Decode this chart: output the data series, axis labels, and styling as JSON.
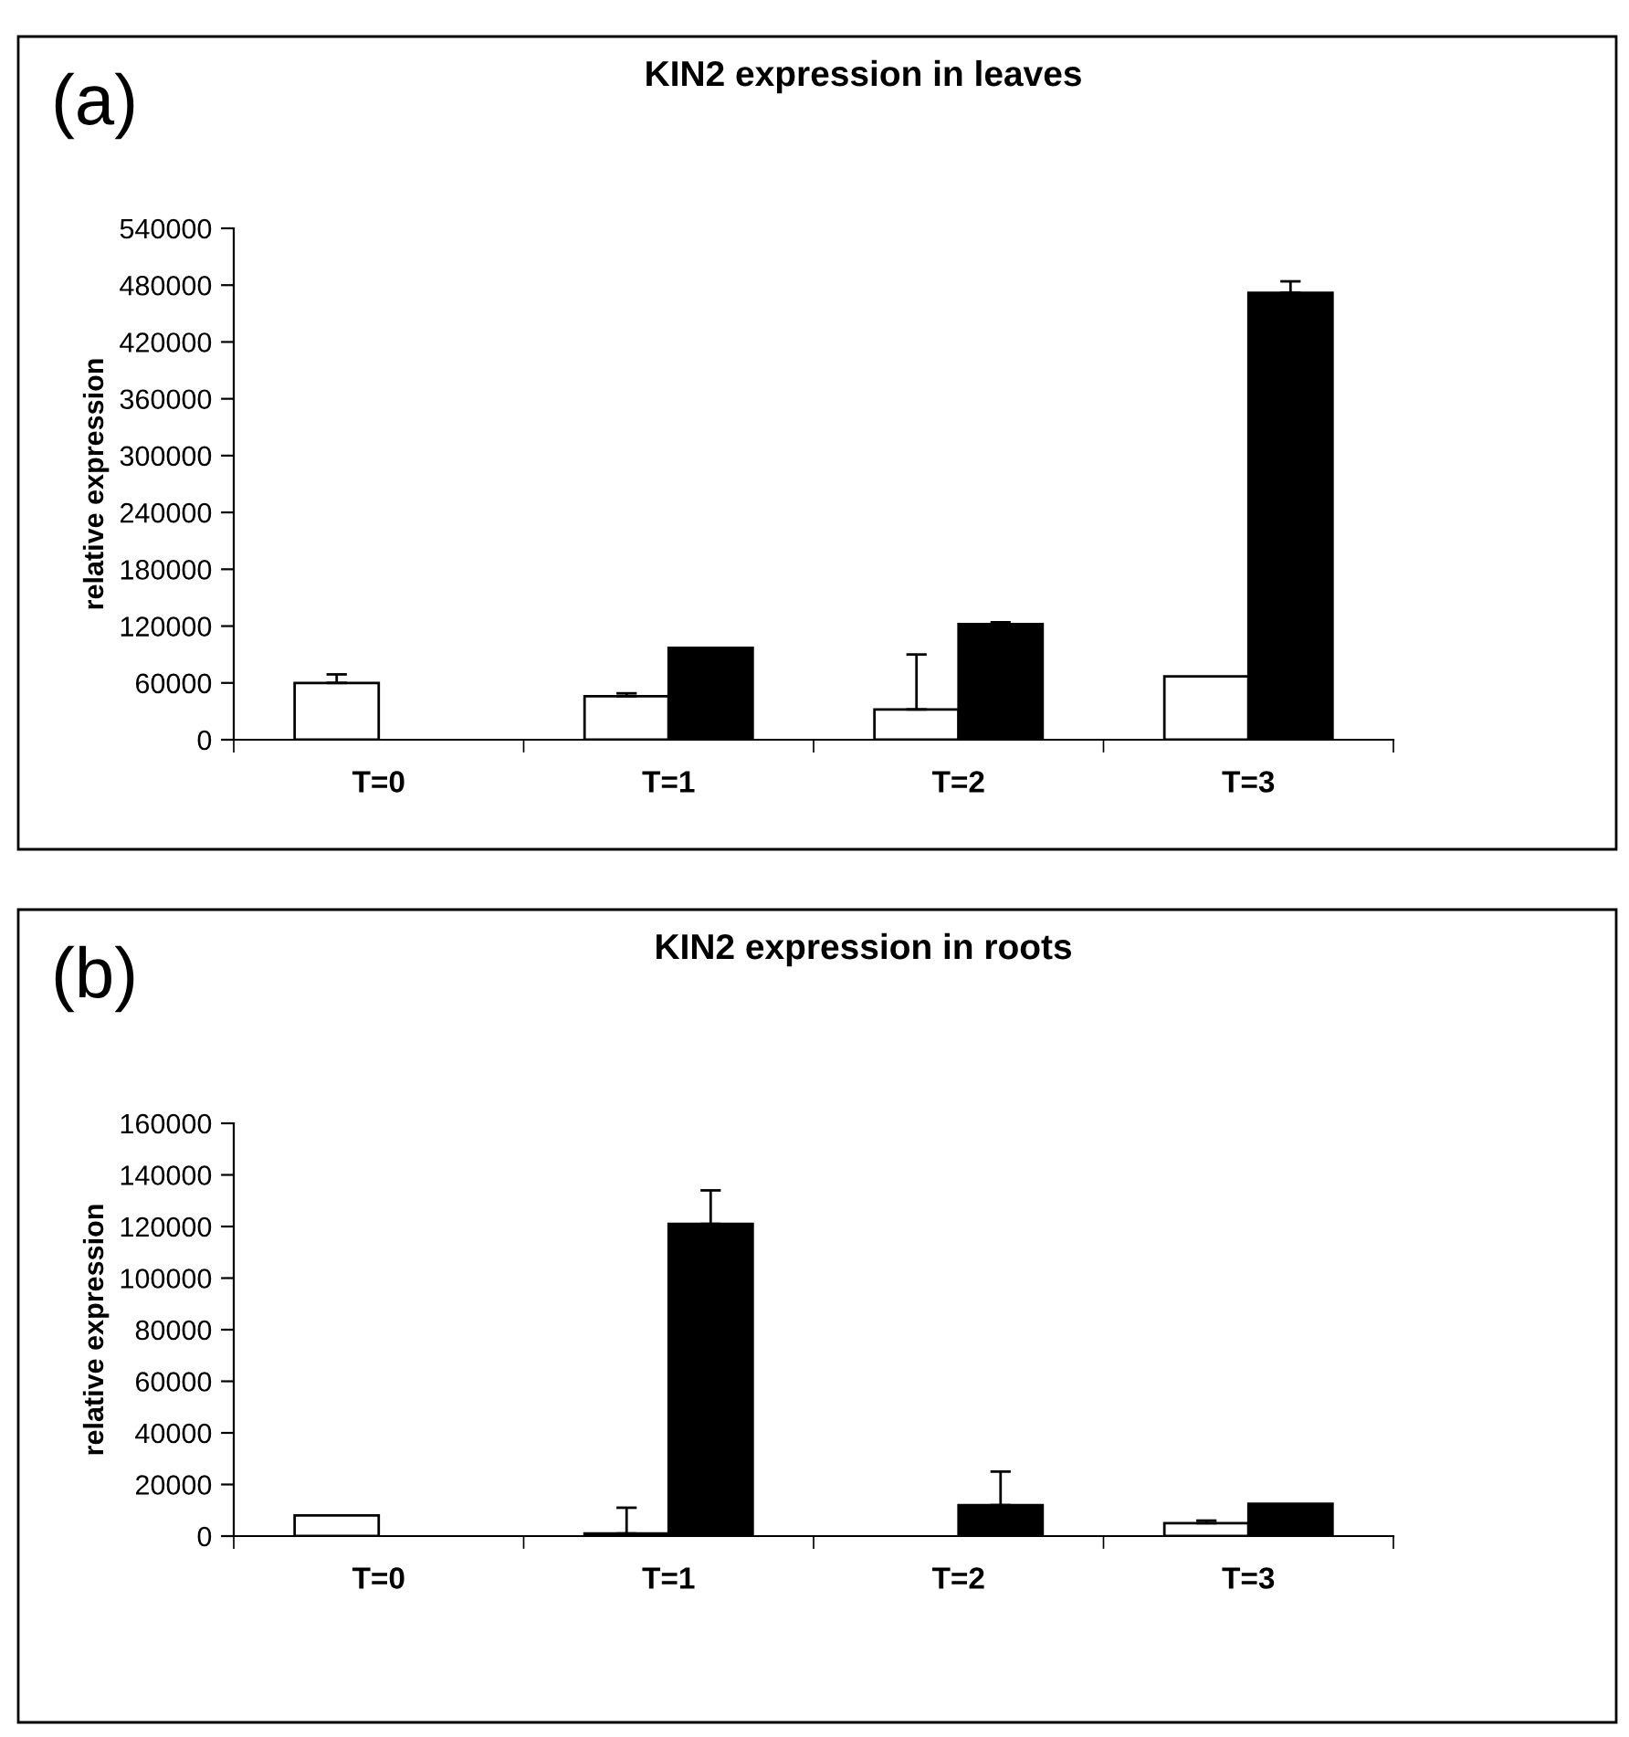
{
  "chart_data": [
    {
      "type": "bar",
      "title": "KIN2 expression in leaves",
      "ylabel": "relative expression",
      "annotations": [
        "(a)"
      ],
      "categories": [
        "T=0",
        "T=1",
        "T=2",
        "T=3"
      ],
      "ylim": [
        0,
        540000
      ],
      "yticks": [
        0,
        60000,
        120000,
        180000,
        240000,
        300000,
        360000,
        420000,
        480000,
        540000
      ],
      "grid": false,
      "legend": false,
      "series": [
        {
          "color": "#ffffff",
          "values": [
            60000,
            46000,
            32000,
            67000
          ],
          "errors": [
            [
              60000,
              69000
            ],
            [
              46000,
              49000
            ],
            [
              32000,
              90000
            ],
            null
          ]
        },
        {
          "color": "#000000",
          "values": [
            null,
            97000,
            122000,
            472000
          ],
          "errors": [
            null,
            null,
            [
              122000,
              124000
            ],
            [
              472000,
              484000
            ]
          ]
        }
      ]
    },
    {
      "type": "bar",
      "title": "KIN2 expression in roots",
      "ylabel": "relative expression",
      "annotations": [
        "(b)"
      ],
      "categories": [
        "T=0",
        "T=1",
        "T=2",
        "T=3"
      ],
      "ylim": [
        0,
        160000
      ],
      "yticks": [
        0,
        20000,
        40000,
        60000,
        80000,
        100000,
        120000,
        140000,
        160000
      ],
      "grid": false,
      "legend": false,
      "series": [
        {
          "color": "#ffffff",
          "values": [
            8000,
            1000,
            null,
            5000
          ],
          "errors": [
            null,
            [
              1000,
              11000
            ],
            null,
            [
              5000,
              6000
            ]
          ]
        },
        {
          "color": "#000000",
          "values": [
            null,
            121000,
            12000,
            12500
          ],
          "errors": [
            null,
            [
              121000,
              134000
            ],
            [
              12000,
              25000
            ],
            null
          ]
        }
      ]
    }
  ]
}
